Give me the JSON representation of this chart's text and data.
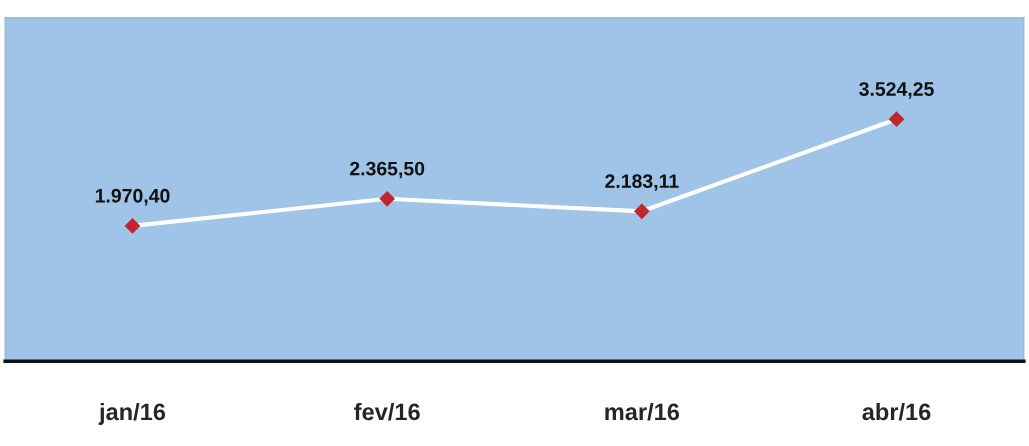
{
  "chart_data": {
    "type": "line",
    "categories": [
      "jan/16",
      "fev/16",
      "mar/16",
      "abr/16"
    ],
    "series": [
      {
        "color": "#ffffff",
        "colors": [
          "#c0272d",
          "#c0272d",
          "#c0272d",
          "#c0272d"
        ],
        "values": [
          1970.4,
          2365.5,
          2183.11,
          3524.25
        ],
        "value_labels": [
          "1.970,40",
          "2.365,50",
          "2.183,11",
          "3.524,25"
        ]
      }
    ],
    "ylim": [
      0,
      5000
    ],
    "tick_labels": "x",
    "marker": "diamond",
    "line_style": "solid",
    "grid": false,
    "legend": false
  }
}
